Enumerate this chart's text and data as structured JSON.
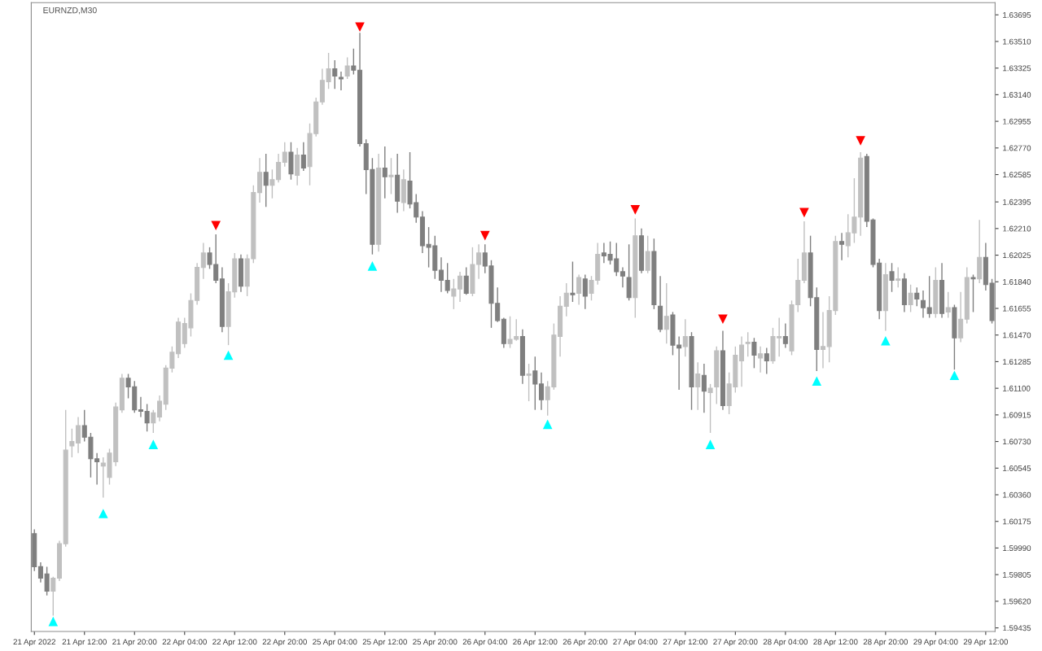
{
  "chart_data": {
    "type": "candlestick",
    "title": "EURNZD,M30",
    "categories": [
      "21 Apr 2022",
      null,
      null,
      null,
      null,
      null,
      null,
      null,
      "21 Apr 12:00",
      null,
      null,
      null,
      null,
      null,
      null,
      null,
      "21 Apr 20:00",
      null,
      null,
      null,
      null,
      null,
      null,
      null,
      "22 Apr 04:00",
      null,
      null,
      null,
      null,
      null,
      null,
      null,
      "22 Apr 12:00",
      null,
      null,
      null,
      null,
      null,
      null,
      null,
      "22 Apr 20:00",
      null,
      null,
      null,
      null,
      null,
      null,
      null,
      "25 Apr 04:00",
      null,
      null,
      null,
      null,
      null,
      null,
      null,
      "25 Apr 12:00",
      null,
      null,
      null,
      null,
      null,
      null,
      null,
      "25 Apr 20:00",
      null,
      null,
      null,
      null,
      null,
      null,
      null,
      "26 Apr 04:00",
      null,
      null,
      null,
      null,
      null,
      null,
      null,
      "26 Apr 12:00",
      null,
      null,
      null,
      null,
      null,
      null,
      null,
      "26 Apr 20:00",
      null,
      null,
      null,
      null,
      null,
      null,
      null,
      "27 Apr 04:00",
      null,
      null,
      null,
      null,
      null,
      null,
      null,
      "27 Apr 12:00",
      null,
      null,
      null,
      null,
      null,
      null,
      null,
      "27 Apr 20:00",
      null,
      null,
      null,
      null,
      null,
      null,
      null,
      "28 Apr 04:00",
      null,
      null,
      null,
      null,
      null,
      null,
      null,
      "28 Apr 12:00",
      null,
      null,
      null,
      null,
      null,
      null,
      null,
      "28 Apr 20:00",
      null,
      null,
      null,
      null,
      null,
      null,
      null,
      "29 Apr 04:00",
      null,
      null,
      null,
      null,
      null,
      null,
      null,
      "29 Apr 12:00",
      null
    ],
    "ohlc": [
      [
        1.6009,
        1.6012,
        1.5983,
        1.5986
      ],
      [
        1.5986,
        1.5989,
        1.5975,
        1.5978
      ],
      [
        1.5981,
        1.5986,
        1.5966,
        1.5969
      ],
      [
        1.5969,
        1.5979,
        1.5952,
        1.5978
      ],
      [
        1.5978,
        1.6004,
        1.5976,
        1.6002
      ],
      [
        1.6002,
        1.6095,
        1.6,
        1.6067
      ],
      [
        1.607,
        1.6082,
        1.6062,
        1.6073
      ],
      [
        1.6072,
        1.609,
        1.6065,
        1.6084
      ],
      [
        1.6084,
        1.6095,
        1.6073,
        1.6076
      ],
      [
        1.6076,
        1.6079,
        1.6048,
        1.6061
      ],
      [
        1.6061,
        1.6065,
        1.6043,
        1.6059
      ],
      [
        1.6056,
        1.6062,
        1.6034,
        1.6058
      ],
      [
        1.6048,
        1.6068,
        1.6043,
        1.6065
      ],
      [
        1.6059,
        1.61,
        1.6056,
        1.6097
      ],
      [
        1.6095,
        1.612,
        1.6093,
        1.6117
      ],
      [
        1.6117,
        1.612,
        1.6103,
        1.6111
      ],
      [
        1.6111,
        1.6115,
        1.6093,
        1.6095
      ],
      [
        1.6095,
        1.6104,
        1.609,
        1.6094
      ],
      [
        1.6094,
        1.6099,
        1.608,
        1.6086
      ],
      [
        1.6086,
        1.6095,
        1.6079,
        1.6093
      ],
      [
        1.609,
        1.6105,
        1.6087,
        1.6101
      ],
      [
        1.6099,
        1.6126,
        1.6095,
        1.6124
      ],
      [
        1.6124,
        1.6139,
        1.6121,
        1.6135
      ],
      [
        1.6134,
        1.6159,
        1.6131,
        1.6156
      ],
      [
        1.6141,
        1.6159,
        1.6138,
        1.6155
      ],
      [
        1.6152,
        1.6176,
        1.6146,
        1.6171
      ],
      [
        1.6171,
        1.6197,
        1.6168,
        1.6194
      ],
      [
        1.6194,
        1.6211,
        1.6186,
        1.6204
      ],
      [
        1.6204,
        1.6208,
        1.6193,
        1.6196
      ],
      [
        1.6196,
        1.6217,
        1.6183,
        1.6185
      ],
      [
        1.6186,
        1.6194,
        1.6149,
        1.6153
      ],
      [
        1.6153,
        1.6183,
        1.614,
        1.6177
      ],
      [
        1.6177,
        1.6204,
        1.6173,
        1.62
      ],
      [
        1.62,
        1.6203,
        1.6177,
        1.6181
      ],
      [
        1.6181,
        1.6203,
        1.6174,
        1.62
      ],
      [
        1.62,
        1.6251,
        1.6197,
        1.6246
      ],
      [
        1.6246,
        1.627,
        1.6239,
        1.626
      ],
      [
        1.626,
        1.6273,
        1.6236,
        1.6251
      ],
      [
        1.6251,
        1.6262,
        1.6242,
        1.6255
      ],
      [
        1.6255,
        1.6273,
        1.6253,
        1.6267
      ],
      [
        1.6267,
        1.6281,
        1.6264,
        1.6274
      ],
      [
        1.6274,
        1.6281,
        1.6255,
        1.6259
      ],
      [
        1.6258,
        1.6277,
        1.6251,
        1.6272
      ],
      [
        1.6272,
        1.6281,
        1.6261,
        1.6263
      ],
      [
        1.6264,
        1.6294,
        1.6251,
        1.6287
      ],
      [
        1.6287,
        1.6312,
        1.6285,
        1.6309
      ],
      [
        1.6309,
        1.6332,
        1.6307,
        1.6324
      ],
      [
        1.6323,
        1.6343,
        1.6318,
        1.6332
      ],
      [
        1.6332,
        1.6338,
        1.6318,
        1.6327
      ],
      [
        1.6326,
        1.633,
        1.6317,
        1.6325
      ],
      [
        1.6327,
        1.634,
        1.6325,
        1.6334
      ],
      [
        1.6334,
        1.6346,
        1.6328,
        1.6331
      ],
      [
        1.6331,
        1.6357,
        1.6278,
        1.628
      ],
      [
        1.628,
        1.6283,
        1.6245,
        1.6262
      ],
      [
        1.6262,
        1.627,
        1.6203,
        1.621
      ],
      [
        1.621,
        1.6273,
        1.6205,
        1.6263
      ],
      [
        1.6263,
        1.6278,
        1.6242,
        1.6257
      ],
      [
        1.6257,
        1.627,
        1.6245,
        1.6258
      ],
      [
        1.6258,
        1.6273,
        1.6232,
        1.624
      ],
      [
        1.6239,
        1.6262,
        1.6233,
        1.6255
      ],
      [
        1.6254,
        1.6274,
        1.6235,
        1.6238
      ],
      [
        1.6239,
        1.6245,
        1.6225,
        1.6229
      ],
      [
        1.6229,
        1.6233,
        1.6204,
        1.6209
      ],
      [
        1.621,
        1.6222,
        1.6194,
        1.6208
      ],
      [
        1.6209,
        1.6216,
        1.6186,
        1.6192
      ],
      [
        1.6192,
        1.6201,
        1.6177,
        1.6185
      ],
      [
        1.6185,
        1.6197,
        1.6176,
        1.6178
      ],
      [
        1.6174,
        1.6186,
        1.6165,
        1.6179
      ],
      [
        1.6179,
        1.6191,
        1.617,
        1.6188
      ],
      [
        1.6188,
        1.6194,
        1.6175,
        1.6176
      ],
      [
        1.6176,
        1.6208,
        1.6174,
        1.6196
      ],
      [
        1.6196,
        1.621,
        1.6186,
        1.6204
      ],
      [
        1.6204,
        1.621,
        1.619,
        1.6195
      ],
      [
        1.6195,
        1.6199,
        1.6152,
        1.6169
      ],
      [
        1.6169,
        1.618,
        1.6156,
        1.6157
      ],
      [
        1.6158,
        1.6159,
        1.6138,
        1.6141
      ],
      [
        1.6141,
        1.616,
        1.6138,
        1.6144
      ],
      [
        1.6144,
        1.6158,
        1.6143,
        1.6146
      ],
      [
        1.6146,
        1.6151,
        1.6113,
        1.6119
      ],
      [
        1.6119,
        1.6127,
        1.6101,
        1.612
      ],
      [
        1.6122,
        1.6132,
        1.6095,
        1.6113
      ],
      [
        1.6113,
        1.6121,
        1.6095,
        1.6102
      ],
      [
        1.6102,
        1.6115,
        1.6091,
        1.6111
      ],
      [
        1.6111,
        1.6155,
        1.6109,
        1.6147
      ],
      [
        1.6146,
        1.6174,
        1.6132,
        1.6167
      ],
      [
        1.6167,
        1.6183,
        1.616,
        1.6176
      ],
      [
        1.6176,
        1.6198,
        1.617,
        1.6175
      ],
      [
        1.6176,
        1.6189,
        1.6168,
        1.6187
      ],
      [
        1.6186,
        1.6189,
        1.6165,
        1.6174
      ],
      [
        1.6176,
        1.6188,
        1.6171,
        1.6185
      ],
      [
        1.6185,
        1.6211,
        1.6182,
        1.6203
      ],
      [
        1.6204,
        1.6211,
        1.6197,
        1.6202
      ],
      [
        1.6203,
        1.6212,
        1.6196,
        1.6199
      ],
      [
        1.62,
        1.6211,
        1.6188,
        1.6191
      ],
      [
        1.6191,
        1.6194,
        1.618,
        1.6188
      ],
      [
        1.6187,
        1.621,
        1.6171,
        1.6173
      ],
      [
        1.6173,
        1.6228,
        1.6159,
        1.6216
      ],
      [
        1.6216,
        1.6221,
        1.619,
        1.6192
      ],
      [
        1.6192,
        1.6216,
        1.619,
        1.6205
      ],
      [
        1.6205,
        1.6214,
        1.6165,
        1.6168
      ],
      [
        1.6167,
        1.6188,
        1.6149,
        1.6151
      ],
      [
        1.6151,
        1.6183,
        1.6141,
        1.616
      ],
      [
        1.6161,
        1.6163,
        1.6133,
        1.614
      ],
      [
        1.614,
        1.6146,
        1.6109,
        1.6138
      ],
      [
        1.6139,
        1.6158,
        1.6132,
        1.6146
      ],
      [
        1.6146,
        1.6149,
        1.6095,
        1.6111
      ],
      [
        1.6111,
        1.6128,
        1.6095,
        1.612
      ],
      [
        1.6119,
        1.6127,
        1.6093,
        1.6108
      ],
      [
        1.6107,
        1.6113,
        1.6079,
        1.611
      ],
      [
        1.6111,
        1.6139,
        1.6099,
        1.6136
      ],
      [
        1.6136,
        1.615,
        1.6095,
        1.6098
      ],
      [
        1.6098,
        1.6121,
        1.6092,
        1.6113
      ],
      [
        1.6111,
        1.6139,
        1.6107,
        1.6133
      ],
      [
        1.6129,
        1.6146,
        1.6111,
        1.614
      ],
      [
        1.6141,
        1.6149,
        1.6132,
        1.6142
      ],
      [
        1.6142,
        1.6145,
        1.6124,
        1.6133
      ],
      [
        1.6131,
        1.6139,
        1.6121,
        1.6134
      ],
      [
        1.6134,
        1.6138,
        1.612,
        1.6129
      ],
      [
        1.6129,
        1.6152,
        1.6127,
        1.6146
      ],
      [
        1.6145,
        1.6159,
        1.6132,
        1.6146
      ],
      [
        1.6146,
        1.6155,
        1.6138,
        1.6141
      ],
      [
        1.6136,
        1.6171,
        1.6133,
        1.6168
      ],
      [
        1.6168,
        1.62,
        1.6163,
        1.6185
      ],
      [
        1.6185,
        1.6226,
        1.6183,
        1.6204
      ],
      [
        1.6204,
        1.6216,
        1.6167,
        1.6173
      ],
      [
        1.6173,
        1.618,
        1.6122,
        1.6137
      ],
      [
        1.6137,
        1.6163,
        1.6124,
        1.6139
      ],
      [
        1.6139,
        1.6174,
        1.6128,
        1.6164
      ],
      [
        1.6164,
        1.6216,
        1.6161,
        1.6212
      ],
      [
        1.6212,
        1.6218,
        1.6199,
        1.621
      ],
      [
        1.6209,
        1.6231,
        1.6201,
        1.6218
      ],
      [
        1.6218,
        1.6256,
        1.6211,
        1.6229
      ],
      [
        1.6229,
        1.6274,
        1.6216,
        1.627
      ],
      [
        1.6271,
        1.6273,
        1.6222,
        1.6226
      ],
      [
        1.6227,
        1.6228,
        1.6194,
        1.6196
      ],
      [
        1.6197,
        1.62,
        1.6158,
        1.6164
      ],
      [
        1.6164,
        1.6197,
        1.615,
        1.6189
      ],
      [
        1.6191,
        1.6197,
        1.6177,
        1.6185
      ],
      [
        1.6185,
        1.6194,
        1.618,
        1.6186
      ],
      [
        1.6186,
        1.619,
        1.6163,
        1.6168
      ],
      [
        1.6168,
        1.6182,
        1.6163,
        1.6176
      ],
      [
        1.6176,
        1.618,
        1.6167,
        1.6172
      ],
      [
        1.6171,
        1.6178,
        1.6159,
        1.6166
      ],
      [
        1.6166,
        1.6188,
        1.6159,
        1.6162
      ],
      [
        1.6162,
        1.6194,
        1.6159,
        1.6185
      ],
      [
        1.6185,
        1.6197,
        1.6159,
        1.6162
      ],
      [
        1.6163,
        1.6177,
        1.6159,
        1.6166
      ],
      [
        1.6166,
        1.6168,
        1.6123,
        1.6145
      ],
      [
        1.6145,
        1.6177,
        1.6142,
        1.6158
      ],
      [
        1.6158,
        1.6194,
        1.6155,
        1.6187
      ],
      [
        1.6187,
        1.6189,
        1.6163,
        1.6186
      ],
      [
        1.6186,
        1.6227,
        1.6183,
        1.6201
      ],
      [
        1.6201,
        1.6211,
        1.6178,
        1.6182
      ],
      [
        1.6183,
        1.6186,
        1.6155,
        1.6157
      ]
    ],
    "colors": [
      "#7f7f7f",
      "#7f7f7f",
      "#7f7f7f",
      "#c0c0c0",
      "#c0c0c0",
      "#c0c0c0",
      "#c0c0c0",
      "#c0c0c0",
      "#7f7f7f",
      "#7f7f7f",
      "#7f7f7f",
      "#c0c0c0",
      "#c0c0c0",
      "#c0c0c0",
      "#c0c0c0",
      "#7f7f7f",
      "#7f7f7f",
      "#7f7f7f",
      "#7f7f7f",
      "#c0c0c0",
      "#c0c0c0",
      "#c0c0c0",
      "#c0c0c0",
      "#c0c0c0",
      "#c0c0c0",
      "#c0c0c0",
      "#c0c0c0",
      "#c0c0c0",
      "#7f7f7f",
      "#7f7f7f",
      "#7f7f7f",
      "#c0c0c0",
      "#c0c0c0",
      "#7f7f7f",
      "#c0c0c0",
      "#c0c0c0",
      "#c0c0c0",
      "#7f7f7f",
      "#c0c0c0",
      "#c0c0c0",
      "#c0c0c0",
      "#7f7f7f",
      "#c0c0c0",
      "#7f7f7f",
      "#c0c0c0",
      "#c0c0c0",
      "#c0c0c0",
      "#c0c0c0",
      "#7f7f7f",
      "#7f7f7f",
      "#c0c0c0",
      "#7f7f7f",
      "#7f7f7f",
      "#7f7f7f",
      "#7f7f7f",
      "#c0c0c0",
      "#7f7f7f",
      "#c0c0c0",
      "#7f7f7f",
      "#c0c0c0",
      "#7f7f7f",
      "#7f7f7f",
      "#7f7f7f",
      "#7f7f7f",
      "#7f7f7f",
      "#7f7f7f",
      "#7f7f7f",
      "#c0c0c0",
      "#c0c0c0",
      "#7f7f7f",
      "#c0c0c0",
      "#c0c0c0",
      "#7f7f7f",
      "#7f7f7f",
      "#7f7f7f",
      "#7f7f7f",
      "#c0c0c0",
      "#c0c0c0",
      "#7f7f7f",
      "#c0c0c0",
      "#7f7f7f",
      "#7f7f7f",
      "#c0c0c0",
      "#c0c0c0",
      "#c0c0c0",
      "#c0c0c0",
      "#7f7f7f",
      "#c0c0c0",
      "#7f7f7f",
      "#c0c0c0",
      "#c0c0c0",
      "#7f7f7f",
      "#7f7f7f",
      "#7f7f7f",
      "#7f7f7f",
      "#7f7f7f",
      "#c0c0c0",
      "#7f7f7f",
      "#c0c0c0",
      "#7f7f7f",
      "#7f7f7f",
      "#c0c0c0",
      "#7f7f7f",
      "#7f7f7f",
      "#c0c0c0",
      "#7f7f7f",
      "#c0c0c0",
      "#7f7f7f",
      "#c0c0c0",
      "#c0c0c0",
      "#7f7f7f",
      "#c0c0c0",
      "#c0c0c0",
      "#c0c0c0",
      "#c0c0c0",
      "#7f7f7f",
      "#c0c0c0",
      "#7f7f7f",
      "#c0c0c0",
      "#c0c0c0",
      "#7f7f7f",
      "#c0c0c0",
      "#c0c0c0",
      "#c0c0c0",
      "#7f7f7f",
      "#7f7f7f",
      "#c0c0c0",
      "#c0c0c0",
      "#c0c0c0",
      "#7f7f7f",
      "#c0c0c0",
      "#c0c0c0",
      "#c0c0c0",
      "#7f7f7f",
      "#7f7f7f",
      "#7f7f7f",
      "#c0c0c0",
      "#7f7f7f",
      "#c0c0c0",
      "#7f7f7f",
      "#c0c0c0",
      "#7f7f7f",
      "#7f7f7f",
      "#7f7f7f",
      "#c0c0c0",
      "#7f7f7f",
      "#c0c0c0",
      "#7f7f7f",
      "#c0c0c0",
      "#c0c0c0",
      "#7f7f7f",
      "#c0c0c0",
      "#7f7f7f",
      "#7f7f7f"
    ],
    "series": [
      {
        "type": "scatter",
        "color": "#00ffff",
        "values": [
          null,
          null,
          null,
          1.5948,
          null,
          null,
          null,
          null,
          null,
          null,
          null,
          1.6023,
          null,
          null,
          null,
          null,
          null,
          null,
          null,
          1.6071,
          null,
          null,
          null,
          null,
          null,
          null,
          null,
          null,
          null,
          null,
          null,
          1.6133,
          null,
          null,
          null,
          null,
          null,
          null,
          null,
          null,
          null,
          null,
          null,
          null,
          null,
          null,
          null,
          null,
          null,
          null,
          null,
          null,
          null,
          null,
          1.6195,
          null,
          null,
          null,
          null,
          null,
          null,
          null,
          null,
          null,
          null,
          null,
          null,
          null,
          null,
          null,
          null,
          null,
          null,
          null,
          null,
          null,
          null,
          null,
          null,
          null,
          null,
          null,
          1.6085,
          null,
          null,
          null,
          null,
          null,
          null,
          null,
          null,
          null,
          null,
          null,
          null,
          null,
          null,
          null,
          null,
          null,
          null,
          null,
          null,
          null,
          null,
          null,
          null,
          null,
          1.6071,
          null,
          null,
          null,
          null,
          null,
          null,
          null,
          null,
          null,
          null,
          null,
          null,
          null,
          null,
          null,
          null,
          1.6115,
          null,
          null,
          null,
          null,
          null,
          null,
          null,
          null,
          null,
          null,
          1.6143,
          null,
          null,
          null,
          null,
          null,
          null,
          null,
          null,
          null,
          null,
          1.6119,
          null,
          null,
          null,
          null,
          null,
          null
        ]
      },
      {
        "type": "scatter",
        "color": "#ff0000",
        "values": [
          null,
          null,
          null,
          null,
          null,
          null,
          null,
          null,
          null,
          null,
          null,
          null,
          null,
          null,
          null,
          null,
          null,
          null,
          null,
          null,
          null,
          null,
          null,
          null,
          null,
          null,
          null,
          null,
          null,
          1.6223,
          null,
          null,
          null,
          null,
          null,
          null,
          null,
          null,
          null,
          null,
          null,
          null,
          null,
          null,
          null,
          null,
          null,
          null,
          null,
          null,
          null,
          null,
          1.6361,
          null,
          null,
          null,
          null,
          null,
          null,
          null,
          null,
          null,
          null,
          null,
          null,
          null,
          null,
          null,
          null,
          null,
          null,
          null,
          1.6216,
          null,
          null,
          null,
          null,
          null,
          null,
          null,
          null,
          null,
          null,
          null,
          null,
          null,
          null,
          null,
          null,
          null,
          null,
          null,
          null,
          null,
          null,
          null,
          1.6234,
          null,
          null,
          null,
          null,
          null,
          null,
          null,
          null,
          null,
          null,
          null,
          null,
          null,
          1.6158,
          null,
          null,
          null,
          null,
          null,
          null,
          null,
          null,
          null,
          null,
          null,
          null,
          1.6232,
          null,
          null,
          null,
          null,
          null,
          null,
          null,
          null,
          1.6282,
          null,
          null,
          null,
          null,
          null,
          null,
          null,
          null,
          null,
          null,
          null,
          null,
          null,
          null,
          null,
          null,
          null,
          null,
          null,
          null,
          null
        ]
      }
    ],
    "marker": "triangle",
    "grid": false,
    "ylim": [
      1.5941,
      1.6378
    ],
    "yticks": [
      {
        "value": 1.59435,
        "label": "1.59435"
      },
      {
        "value": 1.5962,
        "label": "1.59620"
      },
      {
        "value": 1.59805,
        "label": "1.59805"
      },
      {
        "value": 1.5999,
        "label": "1.59990"
      },
      {
        "value": 1.60175,
        "label": "1.60175"
      },
      {
        "value": 1.6036,
        "label": "1.60360"
      },
      {
        "value": 1.60545,
        "label": "1.60545"
      },
      {
        "value": 1.6073,
        "label": "1.60730"
      },
      {
        "value": 1.60915,
        "label": "1.60915"
      },
      {
        "value": 1.611,
        "label": "1.61100"
      },
      {
        "value": 1.61285,
        "label": "1.61285"
      },
      {
        "value": 1.6147,
        "label": "1.61470"
      },
      {
        "value": 1.61655,
        "label": "1.61655"
      },
      {
        "value": 1.6184,
        "label": "1.61840"
      },
      {
        "value": 1.62025,
        "label": "1.62025"
      },
      {
        "value": 1.6221,
        "label": "1.62210"
      },
      {
        "value": 1.62395,
        "label": "1.62395"
      },
      {
        "value": 1.62585,
        "label": "1.62585"
      },
      {
        "value": 1.6277,
        "label": "1.62770"
      },
      {
        "value": 1.62955,
        "label": "1.62955"
      },
      {
        "value": 1.6314,
        "label": "1.63140"
      },
      {
        "value": 1.63325,
        "label": "1.63325"
      },
      {
        "value": 1.6351,
        "label": "1.63510"
      },
      {
        "value": 1.63695,
        "label": "1.63695"
      }
    ]
  }
}
